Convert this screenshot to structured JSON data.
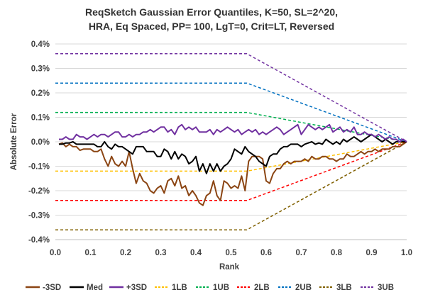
{
  "chart_data": {
    "type": "line",
    "title": "ReqSketch Gaussian Error Quantiles, K=50, SL=2^20,",
    "subtitle": "HRA, Eq Spaced, PP= 100, LgT=0, Crit=LT, Reversed",
    "xlabel": "Rank",
    "ylabel": "Absolute Error",
    "xlim": [
      0,
      1
    ],
    "ylim": [
      -0.004,
      0.004
    ],
    "x_ticks": [
      "0.0",
      "0.1",
      "0.2",
      "0.3",
      "0.4",
      "0.5",
      "0.6",
      "0.7",
      "0.8",
      "0.9",
      "1.0"
    ],
    "y_ticks": [
      "0.4%",
      "0.3%",
      "0.2%",
      "0.1%",
      "0.0%",
      "-0.1%",
      "-0.2%",
      "-0.3%",
      "-0.4%"
    ],
    "grid": "horizontal",
    "legend_position": "bottom",
    "series": [
      {
        "name": "-3SD",
        "color": "#8B4513",
        "dash": "solid",
        "width": 2,
        "x": [
          0.01,
          0.02,
          0.03,
          0.04,
          0.05,
          0.06,
          0.07,
          0.08,
          0.09,
          0.1,
          0.11,
          0.12,
          0.13,
          0.14,
          0.15,
          0.16,
          0.17,
          0.18,
          0.19,
          0.2,
          0.21,
          0.22,
          0.23,
          0.24,
          0.25,
          0.26,
          0.27,
          0.28,
          0.29,
          0.3,
          0.31,
          0.32,
          0.33,
          0.34,
          0.35,
          0.36,
          0.37,
          0.38,
          0.39,
          0.4,
          0.41,
          0.42,
          0.43,
          0.44,
          0.45,
          0.46,
          0.47,
          0.48,
          0.49,
          0.5,
          0.51,
          0.52,
          0.53,
          0.54,
          0.55,
          0.56,
          0.57,
          0.58,
          0.59,
          0.6,
          0.61,
          0.62,
          0.63,
          0.64,
          0.65,
          0.66,
          0.67,
          0.68,
          0.69,
          0.7,
          0.71,
          0.72,
          0.73,
          0.74,
          0.75,
          0.76,
          0.77,
          0.78,
          0.79,
          0.8,
          0.81,
          0.82,
          0.83,
          0.84,
          0.85,
          0.86,
          0.87,
          0.88,
          0.89,
          0.9,
          0.91,
          0.92,
          0.93,
          0.94,
          0.95,
          0.96,
          0.97,
          0.98,
          0.99,
          1.0
        ],
        "y": [
          -0.0001,
          -5e-05,
          -0.0002,
          -0.0001,
          -0.0002,
          -0.0002,
          -0.00035,
          -0.0003,
          -0.0003,
          -0.0003,
          -0.0004,
          -0.0004,
          -0.0003,
          -0.0007,
          -0.001,
          -0.0006,
          -0.0009,
          -0.001,
          -0.0008,
          -0.001,
          -0.0004,
          -0.0011,
          -0.0017,
          -0.0013,
          -0.0016,
          -0.0017,
          -0.002,
          -0.0021,
          -0.0019,
          -0.0018,
          -0.0021,
          -0.0016,
          -0.0015,
          -0.0018,
          -0.0014,
          -0.0019,
          -0.0018,
          -0.0022,
          -0.002,
          -0.0022,
          -0.0025,
          -0.0026,
          -0.0022,
          -0.0021,
          -0.0016,
          -0.0022,
          -0.0024,
          -0.0016,
          -0.0017,
          -0.0019,
          -0.0018,
          -0.0019,
          -0.0014,
          -0.002,
          -0.0008,
          -0.0006,
          -0.0006,
          -0.0006,
          -0.0007,
          -0.0016,
          -0.0017,
          -0.0013,
          -0.0011,
          -0.0011,
          -0.0009,
          -0.0008,
          -0.0009,
          -0.0008,
          -0.0008,
          -0.0008,
          -0.0007,
          -0.0008,
          -0.0006,
          -0.0007,
          -0.0007,
          -0.0006,
          -0.0006,
          -0.0007,
          -0.0007,
          -0.0008,
          -0.0007,
          -0.0007,
          -0.0005,
          -0.0006,
          -0.0006,
          -0.0005,
          -0.0004,
          -0.0005,
          -0.0004,
          -0.0004,
          -0.0003,
          -0.0004,
          -0.0003,
          -0.0003,
          -0.0003,
          -0.0002,
          -0.0002,
          -0.0002,
          -0.0001,
          0.0
        ]
      },
      {
        "name": "Med",
        "color": "#000000",
        "dash": "solid",
        "width": 2,
        "x": [
          0.01,
          0.02,
          0.03,
          0.04,
          0.05,
          0.06,
          0.07,
          0.08,
          0.09,
          0.1,
          0.11,
          0.12,
          0.13,
          0.14,
          0.15,
          0.16,
          0.17,
          0.18,
          0.19,
          0.2,
          0.21,
          0.22,
          0.23,
          0.24,
          0.25,
          0.26,
          0.27,
          0.28,
          0.29,
          0.3,
          0.31,
          0.32,
          0.33,
          0.34,
          0.35,
          0.36,
          0.37,
          0.38,
          0.39,
          0.4,
          0.41,
          0.42,
          0.43,
          0.44,
          0.45,
          0.46,
          0.47,
          0.48,
          0.49,
          0.5,
          0.51,
          0.52,
          0.53,
          0.54,
          0.55,
          0.56,
          0.57,
          0.58,
          0.59,
          0.6,
          0.61,
          0.62,
          0.63,
          0.64,
          0.65,
          0.66,
          0.67,
          0.68,
          0.69,
          0.7,
          0.71,
          0.72,
          0.73,
          0.74,
          0.75,
          0.76,
          0.77,
          0.78,
          0.79,
          0.8,
          0.81,
          0.82,
          0.83,
          0.84,
          0.85,
          0.86,
          0.87,
          0.88,
          0.89,
          0.9,
          0.91,
          0.92,
          0.93,
          0.94,
          0.95,
          0.96,
          0.97,
          0.98,
          0.99,
          1.0
        ],
        "y": [
          -0.0001,
          -0.0001,
          -5e-05,
          -5e-05,
          0.0,
          -0.0001,
          -0.0001,
          -0.0001,
          -0.0001,
          -0.0001,
          -0.0001,
          -0.0002,
          -0.0002,
          0.0,
          -0.0002,
          -0.0003,
          -0.0001,
          -0.0002,
          -0.0002,
          -0.0003,
          -0.0004,
          -0.0005,
          -0.0002,
          -0.0002,
          -0.0002,
          -0.0004,
          -0.0004,
          -0.0004,
          -0.0006,
          -0.0006,
          -0.0003,
          -0.0004,
          -0.0007,
          -0.0004,
          -0.0007,
          -0.0005,
          -0.0006,
          -0.0009,
          -0.0008,
          -0.0006,
          -0.0012,
          -0.0009,
          -0.0013,
          -0.0009,
          -0.0012,
          -0.0009,
          -0.0012,
          -0.001,
          -0.0009,
          -0.0007,
          -0.0003,
          -0.0004,
          -0.0005,
          -0.0002,
          -0.0004,
          -0.0005,
          -0.0006,
          -0.0008,
          -0.0009,
          -0.001,
          -0.0006,
          -0.0005,
          -0.0005,
          -0.0003,
          -0.0002,
          -0.0002,
          -0.0001,
          -0.0001,
          -0.0001,
          -0.0002,
          -0.0001,
          -5e-05,
          0.0,
          -0.0001,
          -5e-05,
          -0.0001,
          0.0001,
          0.0,
          -0.0001,
          0.0,
          -0.0001,
          0.0001,
          0.0,
          0.0001,
          0.0002,
          0.0001,
          0.0,
          0.0001,
          0.0002,
          0.0003,
          0.0002,
          0.0001,
          0.0,
          0.0001,
          0.0,
          -0.0001,
          0.0,
          0.0,
          0.0,
          0.0
        ]
      },
      {
        "name": "+3SD",
        "color": "#7030A0",
        "dash": "solid",
        "width": 2,
        "x": [
          0.01,
          0.02,
          0.03,
          0.04,
          0.05,
          0.06,
          0.07,
          0.08,
          0.09,
          0.1,
          0.11,
          0.12,
          0.13,
          0.14,
          0.15,
          0.16,
          0.17,
          0.18,
          0.19,
          0.2,
          0.21,
          0.22,
          0.23,
          0.24,
          0.25,
          0.26,
          0.27,
          0.28,
          0.29,
          0.3,
          0.31,
          0.32,
          0.33,
          0.34,
          0.35,
          0.36,
          0.37,
          0.38,
          0.39,
          0.4,
          0.41,
          0.42,
          0.43,
          0.44,
          0.45,
          0.46,
          0.47,
          0.48,
          0.49,
          0.5,
          0.51,
          0.52,
          0.53,
          0.54,
          0.55,
          0.56,
          0.57,
          0.58,
          0.59,
          0.6,
          0.61,
          0.62,
          0.63,
          0.64,
          0.65,
          0.66,
          0.67,
          0.68,
          0.69,
          0.7,
          0.71,
          0.72,
          0.73,
          0.74,
          0.75,
          0.76,
          0.77,
          0.78,
          0.79,
          0.8,
          0.81,
          0.82,
          0.83,
          0.84,
          0.85,
          0.86,
          0.87,
          0.88,
          0.89,
          0.9,
          0.91,
          0.92,
          0.93,
          0.94,
          0.95,
          0.96,
          0.97,
          0.98,
          0.99,
          1.0
        ],
        "y": [
          0.0001,
          0.0001,
          0.0002,
          0.0001,
          0.0001,
          0.0003,
          0.0002,
          0.0002,
          0.0001,
          0.0002,
          0.0003,
          0.0002,
          0.0003,
          0.0003,
          0.0002,
          0.0003,
          0.0004,
          0.0004,
          0.0002,
          0.0002,
          0.0003,
          0.0002,
          0.0003,
          0.0003,
          0.0004,
          0.0004,
          0.0005,
          0.0004,
          0.0005,
          0.0006,
          0.0006,
          0.0004,
          0.0005,
          0.0003,
          0.0006,
          0.0007,
          0.0005,
          0.0006,
          0.0005,
          0.0006,
          0.0004,
          0.0004,
          0.0004,
          0.0005,
          0.0003,
          0.0005,
          0.0004,
          0.0005,
          0.0006,
          0.0005,
          0.0004,
          0.0005,
          0.0003,
          0.0004,
          0.0005,
          0.0004,
          0.0005,
          0.0003,
          0.0004,
          0.0003,
          0.0004,
          0.0005,
          0.0006,
          0.0005,
          0.0003,
          0.0004,
          0.0005,
          0.0006,
          0.0007,
          0.0003,
          0.0005,
          0.0007,
          0.0006,
          0.0005,
          0.0006,
          0.0005,
          0.0006,
          0.0007,
          0.0004,
          0.0005,
          0.0006,
          0.0004,
          0.0005,
          0.0004,
          0.0006,
          0.0003,
          0.0003,
          0.0004,
          0.0003,
          0.0003,
          0.0002,
          0.0003,
          0.0002,
          0.0001,
          0.0002,
          0.0001,
          0.0001,
          0.0,
          0.0001,
          0.0
        ]
      },
      {
        "name": "1LB",
        "color": "#FFC000",
        "dash": "dashed",
        "width": 1.5,
        "x": [
          0.0,
          0.545,
          1.0
        ],
        "y": [
          -0.0012,
          -0.0012,
          0.0
        ]
      },
      {
        "name": "1UB",
        "color": "#00B050",
        "dash": "dashed",
        "width": 1.5,
        "x": [
          0.0,
          0.545,
          1.0
        ],
        "y": [
          0.0012,
          0.0012,
          0.0
        ]
      },
      {
        "name": "2LB",
        "color": "#FF0000",
        "dash": "dashed",
        "width": 1.5,
        "x": [
          0.0,
          0.545,
          1.0
        ],
        "y": [
          -0.0024,
          -0.0024,
          0.0
        ]
      },
      {
        "name": "2UB",
        "color": "#0070C0",
        "dash": "dashed",
        "width": 1.5,
        "x": [
          0.0,
          0.545,
          1.0
        ],
        "y": [
          0.0024,
          0.0024,
          0.0
        ]
      },
      {
        "name": "3LB",
        "color": "#806000",
        "dash": "dashed",
        "width": 1.5,
        "x": [
          0.0,
          0.545,
          1.0
        ],
        "y": [
          -0.0036,
          -0.0036,
          0.0
        ]
      },
      {
        "name": "3UB",
        "color": "#7030A0",
        "dash": "dashed",
        "width": 1.5,
        "x": [
          0.0,
          0.545,
          1.0
        ],
        "y": [
          0.0036,
          0.0036,
          0.0
        ]
      }
    ]
  }
}
